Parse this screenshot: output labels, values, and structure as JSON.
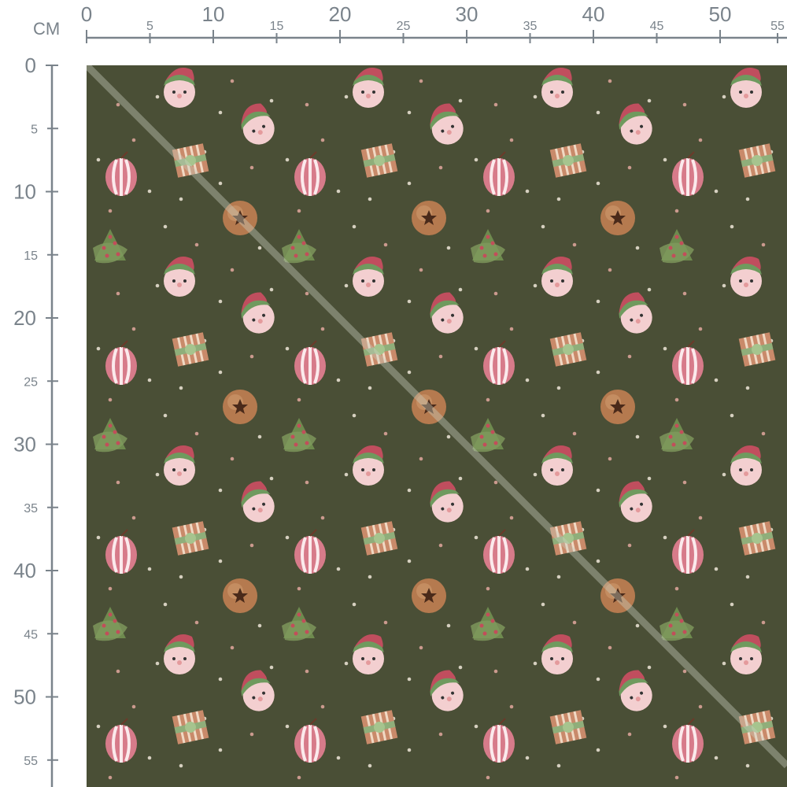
{
  "ruler": {
    "unit": "CM",
    "horizontal_labels": [
      "0",
      "5",
      "10",
      "15",
      "20",
      "25",
      "30",
      "35",
      "40",
      "45",
      "50",
      "55"
    ],
    "vertical_labels": [
      "0",
      "5",
      "10",
      "15",
      "20",
      "25",
      "30",
      "35",
      "40",
      "45",
      "50",
      "55"
    ]
  },
  "fabric": {
    "background_color": "#4a4f36",
    "motifs": [
      "elf-head",
      "elf-head-tilted",
      "striped-ornament",
      "gift-box",
      "jingle-bell",
      "christmas-tree"
    ],
    "diagonal_fold_line": true
  }
}
